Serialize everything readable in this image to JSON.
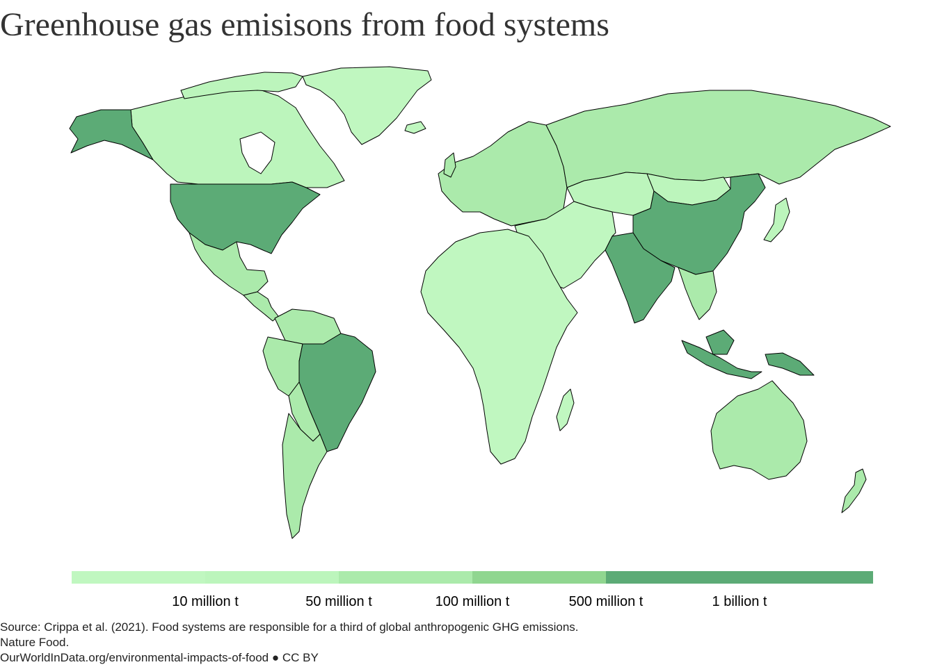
{
  "title": "Greenhouse gas emisisons from food systems",
  "legend": {
    "colors": [
      "#c0f7c0",
      "#bcf5bc",
      "#abeaab",
      "#90d690",
      "#5cab76",
      "#5cab76"
    ],
    "labels": [
      "10 million t",
      "50 million t",
      "100 million t",
      "500 million t",
      "1 billion t"
    ]
  },
  "source": {
    "line1": "Source: Crippa et al. (2021). Food systems are responsible for a third of global anthropogenic GHG emissions.",
    "line2": "Nature Food.",
    "line3": "OurWorldInData.org/environmental-impacts-of-food ● CC BY"
  },
  "map_colors": {
    "highest": "#5cab76",
    "high": "#90d690",
    "mid": "#abeaab",
    "low": "#bcf5bc",
    "lowest": "#c0f7c0"
  }
}
